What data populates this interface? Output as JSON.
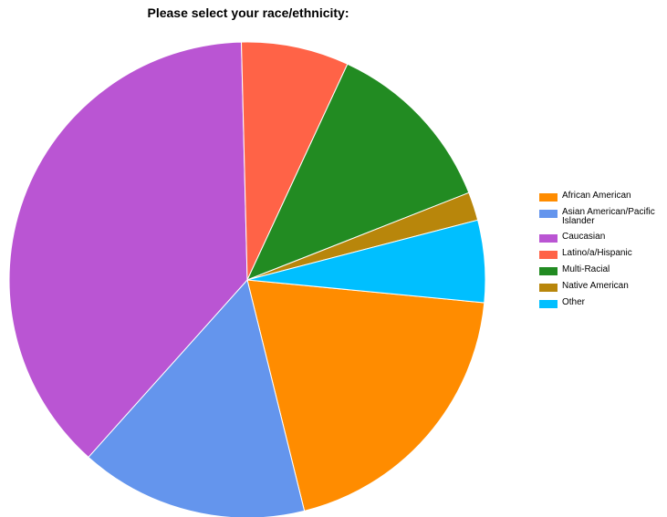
{
  "chart_data": {
    "type": "pie",
    "title": "Please select your race/ethnicity:",
    "slices": [
      {
        "label": "African American",
        "value": 20.4,
        "color": "#FF8C00"
      },
      {
        "label": "Asian American/Pacific Islander",
        "value": 16.1,
        "color": "#6495ED"
      },
      {
        "label": "Caucasian",
        "value": 39.5,
        "color": "#BA55D3"
      },
      {
        "label": "Latino/a/Hispanic",
        "value": 7.6,
        "color": "#FF6347"
      },
      {
        "label": "Multi-Racial",
        "value": 12.6,
        "color": "#228B22"
      },
      {
        "label": "Native American",
        "value": 2.0,
        "color": "#B8860B"
      },
      {
        "label": "Other",
        "value": 5.8,
        "color": "#00BFFF"
      }
    ],
    "legend": {
      "placement": "right",
      "items": [
        {
          "label": "African American",
          "color": "#FF8C00"
        },
        {
          "label": "Asian American/Pacific Islander",
          "color": "#6495ED"
        },
        {
          "label": "Caucasian",
          "color": "#BA55D3"
        },
        {
          "label": "Latino/a/Hispanic",
          "color": "#FF6347"
        },
        {
          "label": "Multi-Racial",
          "color": "#228B22"
        },
        {
          "label": "Native American",
          "color": "#B8860B"
        },
        {
          "label": "Other",
          "color": "#00BFFF"
        }
      ]
    }
  }
}
